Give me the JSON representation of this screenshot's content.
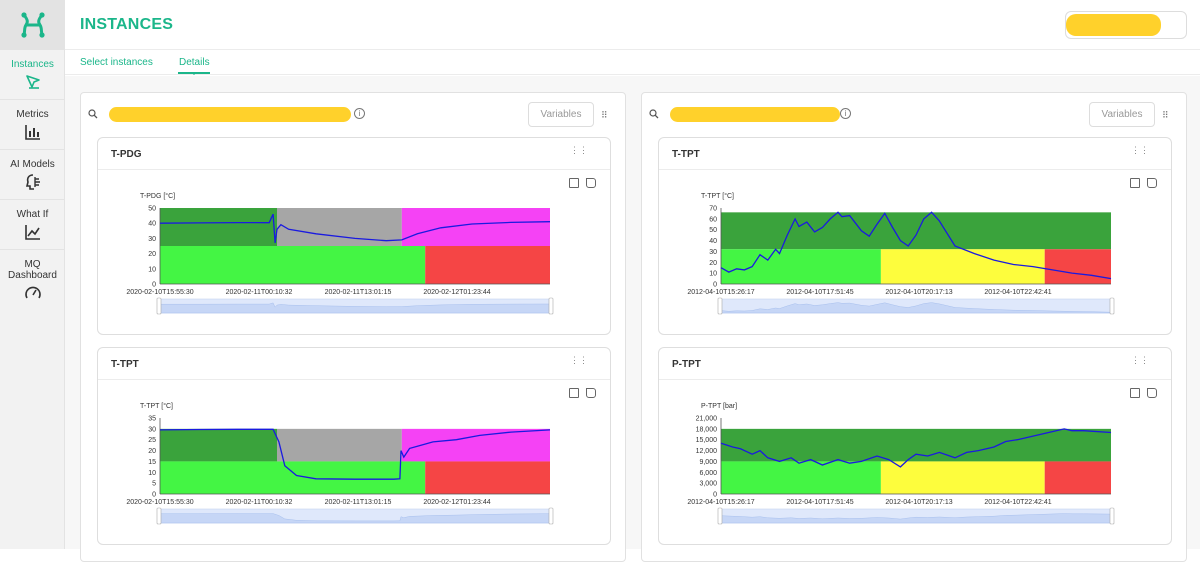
{
  "app": {
    "title": "INSTANCES",
    "accent_color": "#1bb68a",
    "logo_icon": "h-logo-icon"
  },
  "sidebar": {
    "items": [
      {
        "label": "Instances",
        "icon": "pin-icon",
        "active": true
      },
      {
        "label": "Metrics",
        "icon": "bar-chart-icon",
        "active": false
      },
      {
        "label": "AI Models",
        "icon": "ai-brain-icon",
        "active": false
      },
      {
        "label": "What If",
        "icon": "line-chart-icon",
        "active": false
      },
      {
        "label": "MQ Dashboard",
        "icon": "gauge-icon",
        "active": false
      }
    ]
  },
  "tabs": [
    {
      "label": "Select instances",
      "active": false
    },
    {
      "label": "Details",
      "active": true
    }
  ],
  "panels": [
    {
      "variables_label": "Variables"
    },
    {
      "variables_label": "Variables"
    }
  ],
  "charts": [
    {
      "title": "T-PDG",
      "unit_label": "T-PDG [°C]"
    },
    {
      "title": "T-TPT",
      "unit_label": "T-TPT [°C]"
    },
    {
      "title": "T-TPT",
      "unit_label": "T-TPT [°C]"
    },
    {
      "title": "P-TPT",
      "unit_label": "P-TPT [bar]"
    }
  ],
  "chart_data": [
    {
      "type": "line",
      "title": "T-PDG",
      "ylabel": "T-PDG [°C]",
      "ylim": [
        0,
        50
      ],
      "yticks": [
        "50",
        "40",
        "30",
        "20",
        "10",
        "0"
      ],
      "xticks": [
        "2020-02-10T15:55:30",
        "2020-02-11T00:10:32",
        "2020-02-11T13:01:15",
        "2020-02-12T01:23:44"
      ],
      "zones": [
        {
          "x0": 0,
          "x1": 0.3,
          "y0": 25,
          "y1": 50,
          "color": "#3aa33c"
        },
        {
          "x0": 0.3,
          "x1": 0.62,
          "y0": 25,
          "y1": 50,
          "color": "#a6a6a6"
        },
        {
          "x0": 0.62,
          "x1": 1,
          "y0": 25,
          "y1": 50,
          "color": "#f542f5"
        },
        {
          "x0": 0,
          "x1": 0.68,
          "y0": 0,
          "y1": 25,
          "color": "#44f544"
        },
        {
          "x0": 0.68,
          "x1": 1,
          "y0": 0,
          "y1": 25,
          "color": "#f54545"
        }
      ],
      "series": [
        {
          "values": [
            [
              0,
              40
            ],
            [
              0.1,
              40.2
            ],
            [
              0.2,
              40.4
            ],
            [
              0.28,
              40.3
            ],
            [
              0.29,
              46
            ],
            [
              0.295,
              27
            ],
            [
              0.3,
              36
            ],
            [
              0.31,
              39
            ],
            [
              0.33,
              36
            ],
            [
              0.4,
              33
            ],
            [
              0.5,
              30
            ],
            [
              0.58,
              28.5
            ],
            [
              0.62,
              29
            ],
            [
              0.66,
              33
            ],
            [
              0.72,
              37
            ],
            [
              0.8,
              39.5
            ],
            [
              0.9,
              40.5
            ],
            [
              1,
              41
            ]
          ],
          "color": "#1a1ae0"
        }
      ]
    },
    {
      "type": "line",
      "title": "T-TPT",
      "ylabel": "T-TPT [°C]",
      "ylim": [
        0,
        70
      ],
      "yticks": [
        "70",
        "60",
        "50",
        "40",
        "30",
        "20",
        "10",
        "0"
      ],
      "xticks": [
        "2012-04-10T15:26:17",
        "2012-04-10T17:51:45",
        "2012-04-10T20:17:13",
        "2012-04-10T22:42:41"
      ],
      "zones": [
        {
          "x0": 0,
          "x1": 1,
          "y0": 32,
          "y1": 66,
          "color": "#3aa33c"
        },
        {
          "x0": 0,
          "x1": 0.41,
          "y0": 0,
          "y1": 32,
          "color": "#44f544"
        },
        {
          "x0": 0.41,
          "x1": 0.83,
          "y0": 0,
          "y1": 32,
          "color": "#fdfd3d"
        },
        {
          "x0": 0.83,
          "x1": 1,
          "y0": 0,
          "y1": 32,
          "color": "#f54545"
        }
      ],
      "series": [
        {
          "values": [
            [
              0,
              15
            ],
            [
              0.02,
              11
            ],
            [
              0.04,
              14
            ],
            [
              0.06,
              13
            ],
            [
              0.08,
              16
            ],
            [
              0.1,
              27
            ],
            [
              0.12,
              22
            ],
            [
              0.14,
              32
            ],
            [
              0.15,
              28
            ],
            [
              0.17,
              45
            ],
            [
              0.19,
              60
            ],
            [
              0.2,
              53
            ],
            [
              0.22,
              57
            ],
            [
              0.24,
              48
            ],
            [
              0.26,
              52
            ],
            [
              0.28,
              60
            ],
            [
              0.3,
              66
            ],
            [
              0.31,
              62
            ],
            [
              0.33,
              63
            ],
            [
              0.36,
              49
            ],
            [
              0.38,
              44
            ],
            [
              0.4,
              55
            ],
            [
              0.42,
              65
            ],
            [
              0.44,
              52
            ],
            [
              0.46,
              40
            ],
            [
              0.48,
              35
            ],
            [
              0.5,
              45
            ],
            [
              0.52,
              60
            ],
            [
              0.54,
              66
            ],
            [
              0.56,
              58
            ],
            [
              0.6,
              35
            ],
            [
              0.65,
              28
            ],
            [
              0.7,
              22
            ],
            [
              0.75,
              18
            ],
            [
              0.8,
              16
            ],
            [
              0.85,
              13
            ],
            [
              0.9,
              10
            ],
            [
              0.95,
              8
            ],
            [
              1,
              5
            ]
          ],
          "color": "#1a1ae0"
        }
      ]
    },
    {
      "type": "line",
      "title": "T-TPT",
      "ylabel": "T-TPT [°C]",
      "ylim": [
        0,
        35
      ],
      "yticks": [
        "35",
        "30",
        "25",
        "20",
        "15",
        "10",
        "5",
        "0"
      ],
      "xticks": [
        "2020-02-10T15:55:30",
        "2020-02-11T00:10:32",
        "2020-02-11T13:01:15",
        "2020-02-12T01:23:44"
      ],
      "zones": [
        {
          "x0": 0,
          "x1": 0.3,
          "y0": 15,
          "y1": 30,
          "color": "#3aa33c"
        },
        {
          "x0": 0.3,
          "x1": 0.62,
          "y0": 15,
          "y1": 30,
          "color": "#a6a6a6"
        },
        {
          "x0": 0.62,
          "x1": 1,
          "y0": 15,
          "y1": 30,
          "color": "#f542f5"
        },
        {
          "x0": 0,
          "x1": 0.68,
          "y0": 0,
          "y1": 15,
          "color": "#44f544"
        },
        {
          "x0": 0.68,
          "x1": 1,
          "y0": 0,
          "y1": 15,
          "color": "#f54545"
        }
      ],
      "series": [
        {
          "values": [
            [
              0,
              29.5
            ],
            [
              0.1,
              29.7
            ],
            [
              0.2,
              29.8
            ],
            [
              0.29,
              29.8
            ],
            [
              0.305,
              24
            ],
            [
              0.32,
              13
            ],
            [
              0.35,
              8.5
            ],
            [
              0.4,
              7
            ],
            [
              0.5,
              6.8
            ],
            [
              0.6,
              6.8
            ],
            [
              0.615,
              7
            ],
            [
              0.618,
              20
            ],
            [
              0.625,
              17
            ],
            [
              0.64,
              21
            ],
            [
              0.66,
              22
            ],
            [
              0.7,
              24
            ],
            [
              0.76,
              25
            ],
            [
              0.82,
              27
            ],
            [
              0.9,
              28.5
            ],
            [
              1,
              29.5
            ]
          ],
          "color": "#1a1ae0"
        }
      ]
    },
    {
      "type": "line",
      "title": "P-TPT",
      "ylabel": "P-TPT [bar]",
      "ylim": [
        0,
        21000
      ],
      "yticks": [
        "21,000",
        "18,000",
        "15,000",
        "12,000",
        "9,000",
        "6,000",
        "3,000",
        "0"
      ],
      "xticks": [
        "2012-04-10T15:26:17",
        "2012-04-10T17:51:45",
        "2012-04-10T20:17:13",
        "2012-04-10T22:42:41"
      ],
      "zones": [
        {
          "x0": 0,
          "x1": 1,
          "y0": 9000,
          "y1": 18000,
          "color": "#3aa33c"
        },
        {
          "x0": 0,
          "x1": 0.41,
          "y0": 0,
          "y1": 9000,
          "color": "#44f544"
        },
        {
          "x0": 0.41,
          "x1": 0.83,
          "y0": 0,
          "y1": 9000,
          "color": "#fdfd3d"
        },
        {
          "x0": 0.83,
          "x1": 1,
          "y0": 0,
          "y1": 9000,
          "color": "#f54545"
        }
      ],
      "series": [
        {
          "values": [
            [
              0,
              14000
            ],
            [
              0.03,
              13000
            ],
            [
              0.05,
              12500
            ],
            [
              0.08,
              11000
            ],
            [
              0.1,
              12000
            ],
            [
              0.12,
              10000
            ],
            [
              0.15,
              9000
            ],
            [
              0.18,
              10000
            ],
            [
              0.2,
              8500
            ],
            [
              0.23,
              9500
            ],
            [
              0.26,
              8000
            ],
            [
              0.3,
              9500
            ],
            [
              0.33,
              8500
            ],
            [
              0.36,
              9000
            ],
            [
              0.4,
              10500
            ],
            [
              0.43,
              9500
            ],
            [
              0.46,
              7500
            ],
            [
              0.48,
              9500
            ],
            [
              0.5,
              11000
            ],
            [
              0.53,
              10500
            ],
            [
              0.56,
              11500
            ],
            [
              0.6,
              10000
            ],
            [
              0.63,
              11500
            ],
            [
              0.66,
              12000
            ],
            [
              0.7,
              13000
            ],
            [
              0.73,
              14500
            ],
            [
              0.76,
              15000
            ],
            [
              0.8,
              16000
            ],
            [
              0.84,
              17000
            ],
            [
              0.88,
              18000
            ],
            [
              0.9,
              17500
            ],
            [
              0.93,
              17500
            ],
            [
              1,
              17000
            ]
          ],
          "color": "#1a1ae0"
        }
      ]
    }
  ]
}
